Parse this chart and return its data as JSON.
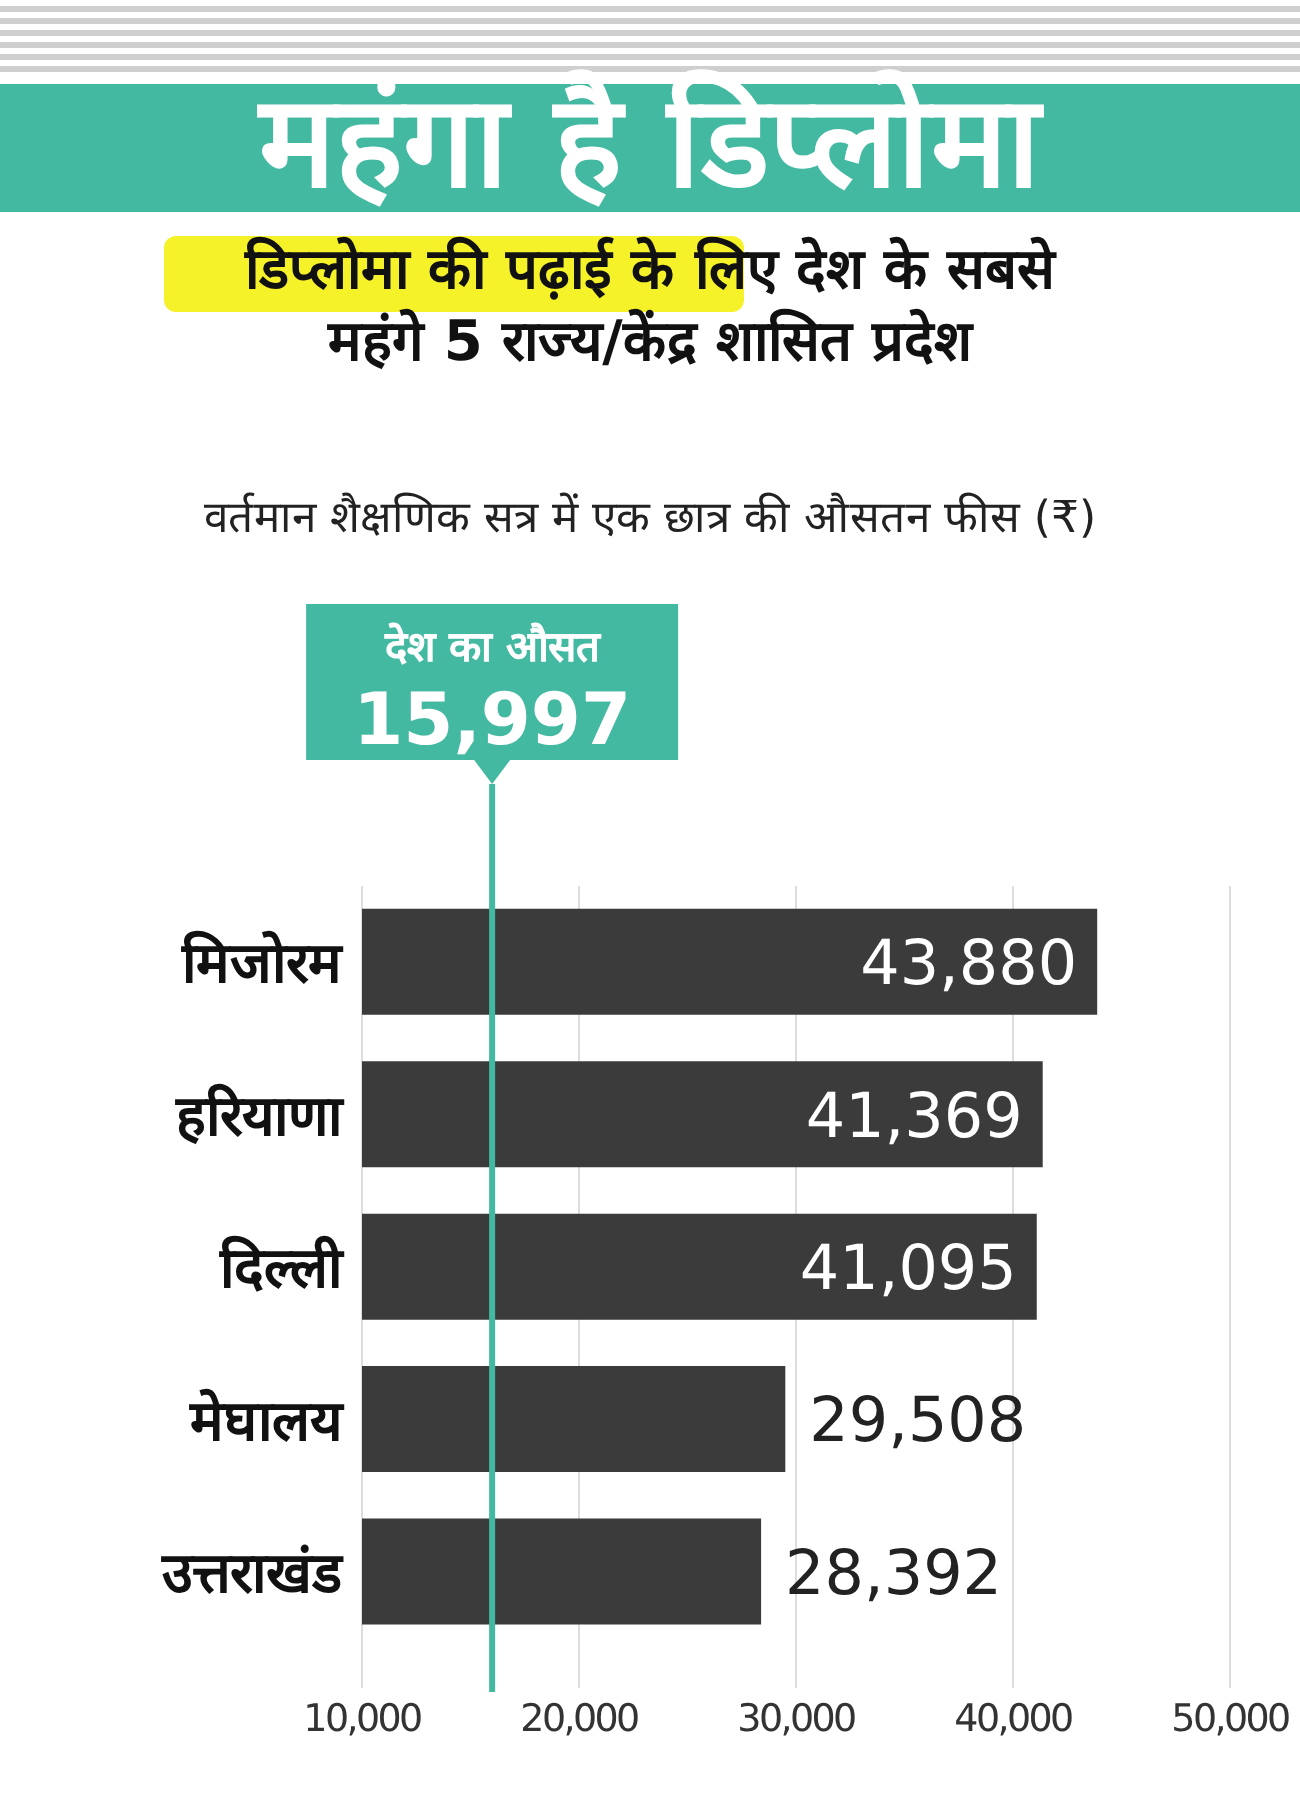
{
  "chart_data": {
    "type": "bar",
    "orientation": "horizontal",
    "title": "महंगा है डिप्लोमा",
    "subtitle": "डिप्लोमा की पढ़ाई के लिए देश के सबसे महंगे 5 राज्य/केंद्र शासित प्रदेश",
    "annotations": [
      "वर्तमान शैक्षणिक सत्र में एक छात्र की औसतन फीस (₹)"
    ],
    "categories": [
      "मिजोरम",
      "हरियाणा",
      "दिल्ली",
      "मेघालय",
      "उत्तराखंड"
    ],
    "values": [
      43880,
      41369,
      41095,
      29508,
      28392
    ],
    "value_labels": [
      "43,880",
      "41,369",
      "41,095",
      "29,508",
      "28,392"
    ],
    "color": "#3b3b3b",
    "xlim": [
      10000,
      50000
    ],
    "xticks": [
      {
        "value": 10000,
        "label": "10,000"
      },
      {
        "value": 20000,
        "label": "20,000"
      },
      {
        "value": 30000,
        "label": "30,000"
      },
      {
        "value": 40000,
        "label": "40,000"
      },
      {
        "value": 50000,
        "label": "50,000"
      }
    ],
    "grid": "x",
    "ref_lines": [
      {
        "axis": "x",
        "value": 15997,
        "label": "देश का औसत\n15,997",
        "color": "#43b9a1"
      }
    ]
  }
}
